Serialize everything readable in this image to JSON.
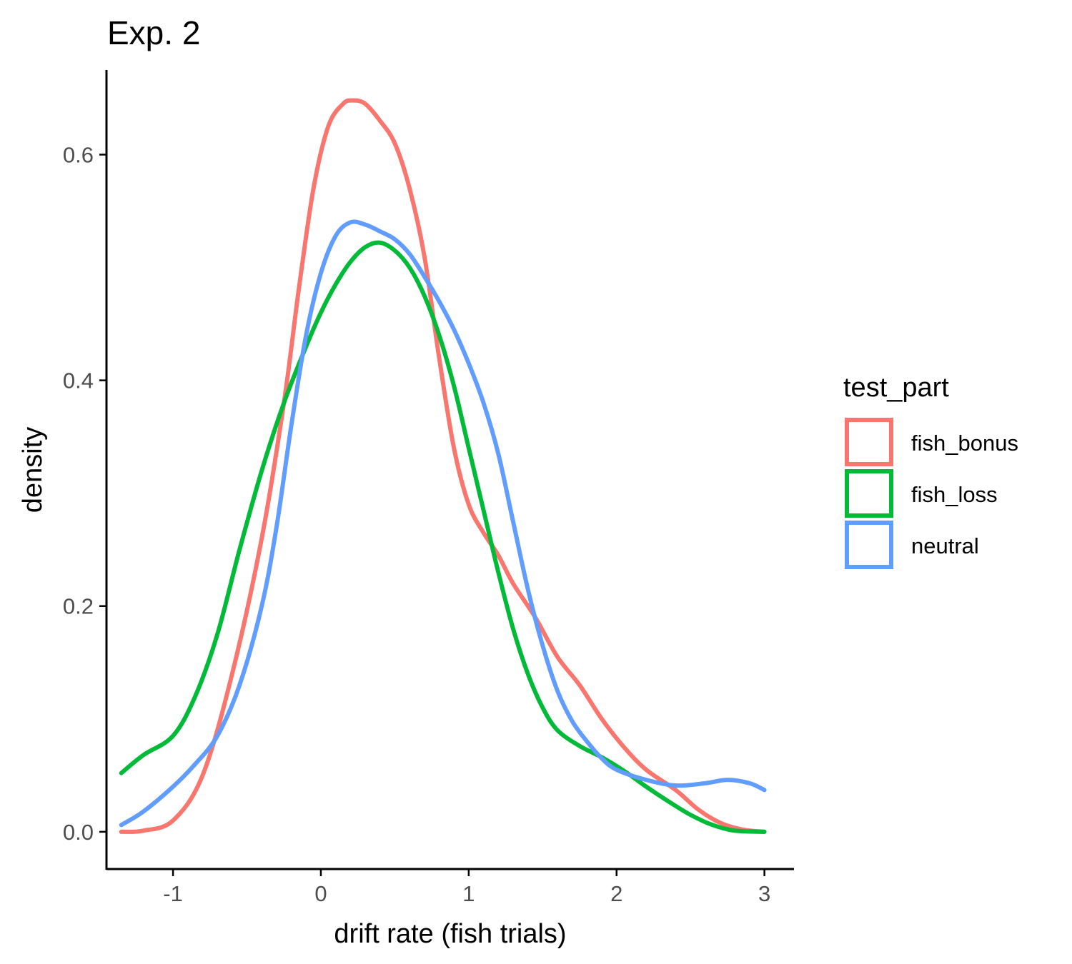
{
  "chart_data": {
    "type": "line",
    "title": "Exp. 2",
    "xlabel": "drift rate (fish trials)",
    "ylabel": "density",
    "xlim": [
      -1.45,
      3.2
    ],
    "ylim": [
      -0.033,
      0.675
    ],
    "x_ticks": [
      -1,
      0,
      1,
      2,
      3
    ],
    "x_tick_labels": [
      "-1",
      "0",
      "1",
      "2",
      "3"
    ],
    "y_ticks": [
      0.0,
      0.2,
      0.4,
      0.6
    ],
    "y_tick_labels": [
      "0.0",
      "0.2",
      "0.4",
      "0.6"
    ],
    "grid": false,
    "legend": {
      "title": "test_part",
      "position": "right"
    },
    "series": [
      {
        "name": "fish_bonus",
        "color": "#F8766D",
        "points": [
          [
            -1.35,
            0.0
          ],
          [
            -1.2,
            0.001
          ],
          [
            -1.0,
            0.01
          ],
          [
            -0.8,
            0.05
          ],
          [
            -0.6,
            0.14
          ],
          [
            -0.4,
            0.26
          ],
          [
            -0.25,
            0.38
          ],
          [
            -0.15,
            0.48
          ],
          [
            -0.05,
            0.57
          ],
          [
            0.05,
            0.625
          ],
          [
            0.15,
            0.645
          ],
          [
            0.22,
            0.648
          ],
          [
            0.3,
            0.645
          ],
          [
            0.4,
            0.63
          ],
          [
            0.5,
            0.61
          ],
          [
            0.6,
            0.57
          ],
          [
            0.7,
            0.51
          ],
          [
            0.8,
            0.42
          ],
          [
            0.9,
            0.34
          ],
          [
            1.0,
            0.29
          ],
          [
            1.1,
            0.265
          ],
          [
            1.2,
            0.245
          ],
          [
            1.3,
            0.22
          ],
          [
            1.45,
            0.19
          ],
          [
            1.6,
            0.155
          ],
          [
            1.75,
            0.13
          ],
          [
            1.9,
            0.1
          ],
          [
            2.05,
            0.075
          ],
          [
            2.2,
            0.055
          ],
          [
            2.4,
            0.037
          ],
          [
            2.55,
            0.02
          ],
          [
            2.7,
            0.008
          ],
          [
            2.85,
            0.002
          ],
          [
            3.0,
            0.0
          ]
        ]
      },
      {
        "name": "fish_loss",
        "color": "#00BA38",
        "points": [
          [
            -1.35,
            0.052
          ],
          [
            -1.2,
            0.068
          ],
          [
            -1.0,
            0.085
          ],
          [
            -0.85,
            0.12
          ],
          [
            -0.7,
            0.175
          ],
          [
            -0.55,
            0.25
          ],
          [
            -0.4,
            0.32
          ],
          [
            -0.25,
            0.38
          ],
          [
            -0.1,
            0.43
          ],
          [
            0.0,
            0.46
          ],
          [
            0.1,
            0.485
          ],
          [
            0.2,
            0.505
          ],
          [
            0.3,
            0.518
          ],
          [
            0.4,
            0.522
          ],
          [
            0.5,
            0.515
          ],
          [
            0.6,
            0.5
          ],
          [
            0.7,
            0.475
          ],
          [
            0.8,
            0.44
          ],
          [
            0.9,
            0.395
          ],
          [
            1.0,
            0.34
          ],
          [
            1.1,
            0.285
          ],
          [
            1.2,
            0.23
          ],
          [
            1.3,
            0.18
          ],
          [
            1.4,
            0.14
          ],
          [
            1.5,
            0.11
          ],
          [
            1.6,
            0.09
          ],
          [
            1.75,
            0.076
          ],
          [
            1.9,
            0.066
          ],
          [
            2.05,
            0.054
          ],
          [
            2.2,
            0.04
          ],
          [
            2.35,
            0.027
          ],
          [
            2.5,
            0.015
          ],
          [
            2.65,
            0.006
          ],
          [
            2.8,
            0.001
          ],
          [
            3.0,
            0.0
          ]
        ]
      },
      {
        "name": "neutral",
        "color": "#619CFF",
        "points": [
          [
            -1.35,
            0.006
          ],
          [
            -1.2,
            0.018
          ],
          [
            -1.0,
            0.04
          ],
          [
            -0.85,
            0.06
          ],
          [
            -0.7,
            0.085
          ],
          [
            -0.55,
            0.13
          ],
          [
            -0.4,
            0.2
          ],
          [
            -0.3,
            0.27
          ],
          [
            -0.2,
            0.36
          ],
          [
            -0.1,
            0.44
          ],
          [
            0.0,
            0.495
          ],
          [
            0.1,
            0.528
          ],
          [
            0.2,
            0.54
          ],
          [
            0.3,
            0.538
          ],
          [
            0.4,
            0.532
          ],
          [
            0.5,
            0.525
          ],
          [
            0.6,
            0.512
          ],
          [
            0.7,
            0.492
          ],
          [
            0.8,
            0.47
          ],
          [
            0.9,
            0.445
          ],
          [
            1.0,
            0.415
          ],
          [
            1.1,
            0.38
          ],
          [
            1.2,
            0.335
          ],
          [
            1.3,
            0.275
          ],
          [
            1.4,
            0.215
          ],
          [
            1.5,
            0.165
          ],
          [
            1.6,
            0.125
          ],
          [
            1.7,
            0.098
          ],
          [
            1.8,
            0.08
          ],
          [
            1.9,
            0.065
          ],
          [
            2.0,
            0.055
          ],
          [
            2.2,
            0.046
          ],
          [
            2.4,
            0.041
          ],
          [
            2.6,
            0.043
          ],
          [
            2.75,
            0.046
          ],
          [
            2.9,
            0.043
          ],
          [
            3.0,
            0.037
          ]
        ]
      }
    ]
  }
}
